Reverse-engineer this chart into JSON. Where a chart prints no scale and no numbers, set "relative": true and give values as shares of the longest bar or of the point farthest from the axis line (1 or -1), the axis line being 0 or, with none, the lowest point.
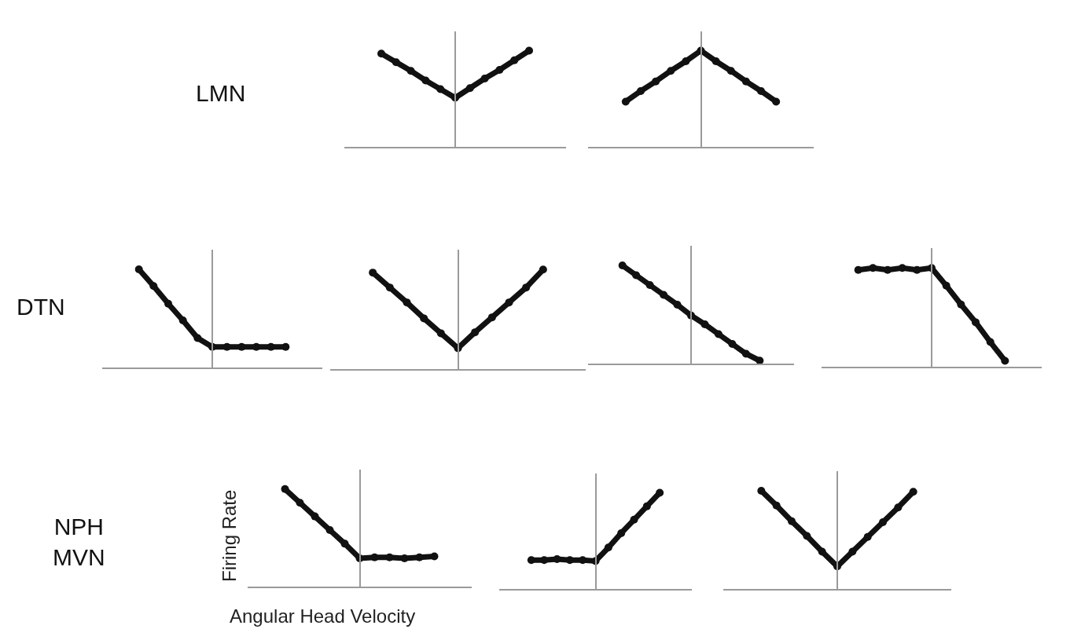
{
  "chart_data": [
    {
      "type": "line",
      "categories": [
        null,
        null,
        null,
        null,
        null,
        null,
        null,
        null,
        null,
        null,
        null,
        null,
        null,
        null,
        null
      ],
      "relative": true,
      "color": "#111111",
      "marker": "circle",
      "annotations": [
        "LMN"
      ],
      "values": [
        null,
        null,
        0.97,
        0.88,
        0.79,
        0.69,
        0.6,
        0.51,
        0.61,
        0.71,
        0.8,
        0.9,
        1.0,
        null,
        null
      ]
    },
    {
      "type": "line",
      "categories": [
        null,
        null,
        null,
        null,
        null,
        null,
        null,
        null,
        null,
        null,
        null,
        null,
        null,
        null,
        null
      ],
      "relative": true,
      "color": "#111111",
      "marker": "circle",
      "values": [
        null,
        null,
        0.47,
        0.58,
        0.68,
        0.79,
        0.89,
        1.0,
        0.89,
        0.79,
        0.68,
        0.58,
        0.47,
        null,
        null
      ]
    },
    {
      "type": "line",
      "categories": [
        null,
        null,
        null,
        null,
        null,
        null,
        null,
        null,
        null,
        null,
        null,
        null,
        null,
        null,
        null
      ],
      "relative": true,
      "color": "#111111",
      "marker": "circle",
      "annotations": [
        "DTN"
      ],
      "values": [
        null,
        null,
        1.0,
        0.83,
        0.65,
        0.48,
        0.3,
        0.21,
        0.21,
        0.21,
        0.21,
        0.21,
        0.21,
        null,
        null
      ]
    },
    {
      "type": "line",
      "categories": [
        null,
        null,
        null,
        null,
        null,
        null,
        null,
        null,
        null,
        null,
        null,
        null,
        null,
        null,
        null
      ],
      "relative": true,
      "color": "#111111",
      "marker": "circle",
      "values": [
        null,
        null,
        0.97,
        0.82,
        0.67,
        0.51,
        0.36,
        0.21,
        0.37,
        0.52,
        0.67,
        0.82,
        1.0,
        null,
        null
      ]
    },
    {
      "type": "line",
      "categories": [
        null,
        null,
        null,
        null,
        null,
        null,
        null,
        null,
        null,
        null,
        null,
        null,
        null,
        null,
        null
      ],
      "relative": true,
      "color": "#111111",
      "marker": "circle",
      "values": [
        null,
        null,
        1.0,
        0.9,
        0.8,
        0.7,
        0.6,
        0.49,
        0.4,
        0.3,
        0.2,
        0.1,
        0.03,
        null,
        null
      ]
    },
    {
      "type": "line",
      "categories": [
        null,
        null,
        null,
        null,
        null,
        null,
        null,
        null,
        null,
        null,
        null,
        null,
        null,
        null,
        null
      ],
      "relative": true,
      "color": "#111111",
      "marker": "circle",
      "values": [
        null,
        null,
        0.98,
        1.0,
        0.98,
        1.0,
        0.98,
        1.0,
        0.82,
        0.63,
        0.45,
        0.25,
        0.06,
        null,
        null
      ]
    },
    {
      "type": "line",
      "categories": [
        null,
        null,
        null,
        null,
        null,
        null,
        null,
        null,
        null,
        null,
        null,
        null,
        null,
        null,
        null
      ],
      "relative": true,
      "color": "#111111",
      "marker": "circle",
      "annotations": [
        "NPH\nMVN"
      ],
      "xlabel": "Angular Head Velocity",
      "ylabel": "Firing Rate",
      "values": [
        null,
        null,
        1.0,
        0.86,
        0.72,
        0.58,
        0.44,
        0.29,
        0.3,
        0.3,
        0.29,
        0.3,
        0.31,
        null,
        null
      ]
    },
    {
      "type": "line",
      "categories": [
        null,
        null,
        null,
        null,
        null,
        null,
        null,
        null,
        null,
        null,
        null,
        null,
        null,
        null,
        null
      ],
      "relative": true,
      "color": "#111111",
      "marker": "circle",
      "values": [
        null,
        null,
        0.3,
        0.3,
        0.31,
        0.3,
        0.3,
        0.29,
        0.43,
        0.58,
        0.72,
        0.86,
        1.0,
        null,
        null
      ]
    },
    {
      "type": "line",
      "categories": [
        null,
        null,
        null,
        null,
        null,
        null,
        null,
        null,
        null,
        null,
        null,
        null,
        null,
        null,
        null
      ],
      "relative": true,
      "color": "#111111",
      "marker": "circle",
      "values": [
        null,
        null,
        1.0,
        0.85,
        0.69,
        0.54,
        0.38,
        0.23,
        0.38,
        0.53,
        0.68,
        0.83,
        0.99,
        null,
        null
      ]
    }
  ]
}
